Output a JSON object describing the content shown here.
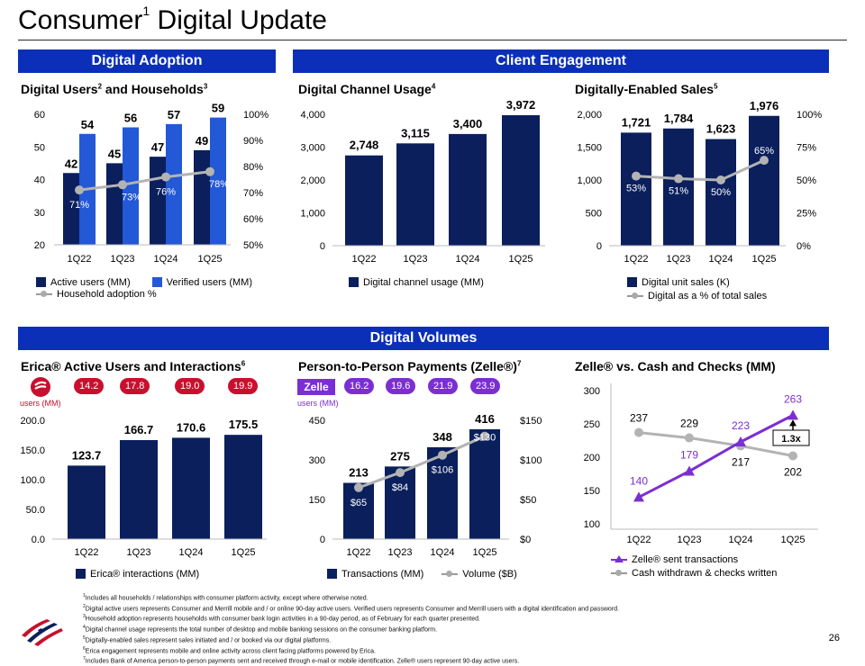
{
  "page": {
    "title": "Consumer",
    "title_sup": "1",
    "title_rest": " Digital Update",
    "page_number": "26"
  },
  "sections": {
    "digital_adoption": "Digital Adoption",
    "client_engagement": "Client Engagement",
    "digital_volumes": "Digital Volumes"
  },
  "colors": {
    "header_blue": "#0b2fb8",
    "navy": "#0a1f5c",
    "bright_blue": "#2358d6",
    "gray_line": "#b3b3b3",
    "erica_red": "#c8102e",
    "zelle_purple": "#7b2fd1"
  },
  "panels": {
    "users": {
      "title": "Digital Users",
      "title_sup1": "2",
      "title_mid": " and Households",
      "title_sup2": "3",
      "legend_active": "Active users (MM)",
      "legend_verified": "Verified users (MM)",
      "legend_household": "Household adoption %"
    },
    "channel": {
      "title": "Digital Channel Usage",
      "title_sup": "4",
      "legend": "Digital channel usage (MM)"
    },
    "sales": {
      "title": "Digitally-Enabled Sales",
      "title_sup": "5",
      "legend_units": "Digital unit sales (K)",
      "legend_pct": "Digital as a % of total sales"
    },
    "erica": {
      "title": "Erica® Active Users and Interactions",
      "title_sup": "6",
      "pill_label": "users (MM)",
      "pills": [
        "14.2",
        "17.8",
        "19.0",
        "19.9"
      ],
      "legend": "Erica® interactions (MM)"
    },
    "p2p": {
      "title": "Person-to-Person Payments (Zelle®)",
      "title_sup": "7",
      "logo_text": "Zelle",
      "pill_label": "users (MM)",
      "pills": [
        "16.2",
        "19.6",
        "21.9",
        "23.9"
      ],
      "legend_tx": "Transactions (MM)",
      "legend_vol": "Volume ($B)"
    },
    "zelle_cash": {
      "title": "Zelle® vs. Cash and Checks (MM)",
      "callout": "1.3x",
      "legend_zelle": "Zelle® sent transactions",
      "legend_cash": "Cash withdrawn & checks written"
    }
  },
  "chart_data": [
    {
      "type": "bar",
      "id": "users",
      "categories": [
        "1Q22",
        "1Q23",
        "1Q24",
        "1Q25"
      ],
      "series": [
        {
          "name": "Active users (MM)",
          "values": [
            42,
            45,
            47,
            49
          ]
        },
        {
          "name": "Verified users (MM)",
          "values": [
            54,
            56,
            57,
            59
          ]
        },
        {
          "name": "Household adoption %",
          "values": [
            71,
            73,
            76,
            78
          ],
          "labels": [
            "71%",
            "73%",
            "76%",
            "78%"
          ],
          "axis": "right"
        }
      ],
      "ylim": [
        20,
        60
      ],
      "yticks": [
        "60",
        "50",
        "40",
        "30",
        "20"
      ],
      "y2lim": [
        50,
        100
      ],
      "y2ticks": [
        "100%",
        "90%",
        "80%",
        "70%",
        "60%",
        "50%"
      ]
    },
    {
      "type": "bar",
      "id": "channel",
      "categories": [
        "1Q22",
        "1Q23",
        "1Q24",
        "1Q25"
      ],
      "values": [
        2748,
        3115,
        3400,
        3972
      ],
      "labels": [
        "2,748",
        "3,115",
        "3,400",
        "3,972"
      ],
      "ylim": [
        0,
        4000
      ],
      "yticks": [
        "4,000",
        "3,000",
        "2,000",
        "1,000",
        "0"
      ]
    },
    {
      "type": "bar",
      "id": "sales",
      "categories": [
        "1Q22",
        "1Q23",
        "1Q24",
        "1Q25"
      ],
      "series": [
        {
          "name": "Digital unit sales (K)",
          "values": [
            1721,
            1784,
            1623,
            1976
          ],
          "labels": [
            "1,721",
            "1,784",
            "1,623",
            "1,976"
          ]
        },
        {
          "name": "Digital as a % of total sales",
          "values": [
            53,
            51,
            50,
            65
          ],
          "labels": [
            "53%",
            "51%",
            "50%",
            "65%"
          ],
          "axis": "right"
        }
      ],
      "ylim": [
        0,
        2000
      ],
      "yticks": [
        "2,000",
        "1,500",
        "1,000",
        "500",
        "0"
      ],
      "y2lim": [
        0,
        100
      ],
      "y2ticks": [
        "100%",
        "75%",
        "50%",
        "25%",
        "0%"
      ]
    },
    {
      "type": "bar",
      "id": "erica",
      "categories": [
        "1Q22",
        "1Q23",
        "1Q24",
        "1Q25"
      ],
      "values": [
        123.7,
        166.7,
        170.6,
        175.5
      ],
      "labels": [
        "123.7",
        "166.7",
        "170.6",
        "175.5"
      ],
      "ylim": [
        0,
        200
      ],
      "yticks": [
        "200.0",
        "150.0",
        "100.0",
        "50.0",
        "0.0"
      ]
    },
    {
      "type": "bar",
      "id": "p2p",
      "categories": [
        "1Q22",
        "1Q23",
        "1Q24",
        "1Q25"
      ],
      "series": [
        {
          "name": "Transactions (MM)",
          "values": [
            213,
            275,
            348,
            416
          ],
          "labels": [
            "213",
            "275",
            "348",
            "416"
          ]
        },
        {
          "name": "Volume ($B)",
          "values": [
            65,
            84,
            106,
            130
          ],
          "labels": [
            "$65",
            "$84",
            "$106",
            "$130"
          ],
          "axis": "right"
        }
      ],
      "ylim": [
        0,
        450
      ],
      "yticks": [
        "450",
        "300",
        "150",
        "0"
      ],
      "y2lim": [
        0,
        150
      ],
      "y2ticks": [
        "$150",
        "$100",
        "$50",
        "$0"
      ]
    },
    {
      "type": "line",
      "id": "zelle_cash",
      "categories": [
        "1Q22",
        "1Q23",
        "1Q24",
        "1Q25"
      ],
      "series": [
        {
          "name": "Zelle® sent transactions",
          "values": [
            140,
            179,
            223,
            263
          ]
        },
        {
          "name": "Cash withdrawn & checks written",
          "values": [
            237,
            229,
            217,
            202
          ]
        }
      ],
      "ylim": [
        100,
        300
      ],
      "yticks": [
        "300",
        "250",
        "200",
        "150",
        "100"
      ]
    }
  ],
  "footnotes": [
    {
      "n": "1",
      "text": "Includes all households / relationships with consumer platform activity, except where otherwise noted."
    },
    {
      "n": "2",
      "text": "Digital active users represents Consumer and Merrill mobile and / or online 90-day active users. Verified users represents Consumer and Merrill users with a digital identification and password."
    },
    {
      "n": "3",
      "text": "Household adoption represents households with consumer bank login activities in a 90-day period, as of February for each quarter presented."
    },
    {
      "n": "4",
      "text": "Digital channel usage represents the total number of desktop and mobile banking sessions on the consumer banking platform."
    },
    {
      "n": "5",
      "text": "Digitally-enabled sales represent sales initiated and / or booked via our digital platforms."
    },
    {
      "n": "6",
      "text": "Erica engagement represents mobile and online activity across client facing platforms powered by Erica."
    },
    {
      "n": "7",
      "text": "Includes Bank of America person-to-person payments sent and received through e-mail or mobile identification. Zelle® users represent 90-day active users."
    }
  ]
}
